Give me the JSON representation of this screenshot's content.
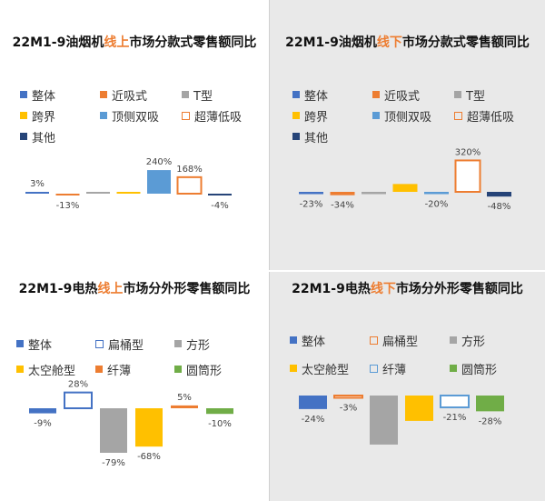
{
  "colors": {
    "total": "#4472C4",
    "orange": "#ED7D31",
    "gray": "#A5A5A5",
    "gold": "#FFC000",
    "lightblue": "#5B9BD5",
    "navy": "#264478",
    "green": "#70AD47",
    "highlight": "#ED7D31"
  },
  "chart_data": [
    {
      "type": "bar",
      "title_parts": [
        "22M1-9油烟机",
        "线上",
        "市场分款式零售额同比"
      ],
      "categories": [
        "整体",
        "近吸式",
        "T型",
        "跨界",
        "顶侧双吸",
        "超薄低吸",
        "其他"
      ],
      "values": [
        3,
        -13,
        0,
        1,
        240,
        168,
        -4
      ],
      "labels": [
        "3%",
        "-13%",
        "",
        "",
        "240%",
        "168%",
        "-4%"
      ],
      "colors": [
        "#4472C4",
        "#ED7D31",
        "#A5A5A5",
        "#FFC000",
        "#5B9BD5",
        "#ED7D31",
        "#264478"
      ],
      "outlined": [
        false,
        false,
        false,
        false,
        false,
        true,
        false
      ]
    },
    {
      "type": "bar",
      "title_parts": [
        "22M1-9油烟机",
        "线下",
        "市场分款式零售额同比"
      ],
      "categories": [
        "整体",
        "近吸式",
        "T型",
        "跨界",
        "顶侧双吸",
        "超薄低吸",
        "其他"
      ],
      "values": [
        -23,
        -34,
        -10,
        80,
        -20,
        320,
        -48
      ],
      "labels": [
        "-23%",
        "-34%",
        "",
        "",
        "-20%",
        "320%",
        "-48%"
      ],
      "colors": [
        "#4472C4",
        "#ED7D31",
        "#A5A5A5",
        "#FFC000",
        "#5B9BD5",
        "#ED7D31",
        "#264478"
      ],
      "outlined": [
        false,
        false,
        false,
        false,
        false,
        true,
        false
      ]
    },
    {
      "type": "bar",
      "title_parts": [
        "22M1-9电热",
        "线上",
        "市场分外形零售额同比"
      ],
      "categories": [
        "整体",
        "扁桶型",
        "方形",
        "太空舱型",
        "纤薄",
        "圆筒形"
      ],
      "values": [
        -9,
        28,
        -79,
        -68,
        5,
        -10
      ],
      "labels": [
        "-9%",
        "28%",
        "-79%",
        "-68%",
        "5%",
        "-10%"
      ],
      "colors": [
        "#4472C4",
        "#4472C4",
        "#A5A5A5",
        "#FFC000",
        "#ED7D31",
        "#70AD47"
      ],
      "outlined": [
        false,
        true,
        false,
        false,
        false,
        false
      ]
    },
    {
      "type": "bar",
      "title_parts": [
        "22M1-9电热",
        "线下",
        "市场分外形零售额同比"
      ],
      "categories": [
        "整体",
        "扁桶型",
        "方形",
        "太空舱型",
        "纤薄",
        "圆筒形"
      ],
      "values": [
        -24,
        -3,
        -87,
        -45,
        -21,
        -28
      ],
      "labels": [
        "-24%",
        "-3%",
        "",
        "",
        "-21%",
        "-28%"
      ],
      "colors": [
        "#4472C4",
        "#ED7D31",
        "#A5A5A5",
        "#FFC000",
        "#5B9BD5",
        "#70AD47"
      ],
      "outlined": [
        false,
        true,
        false,
        false,
        true,
        false
      ]
    }
  ]
}
